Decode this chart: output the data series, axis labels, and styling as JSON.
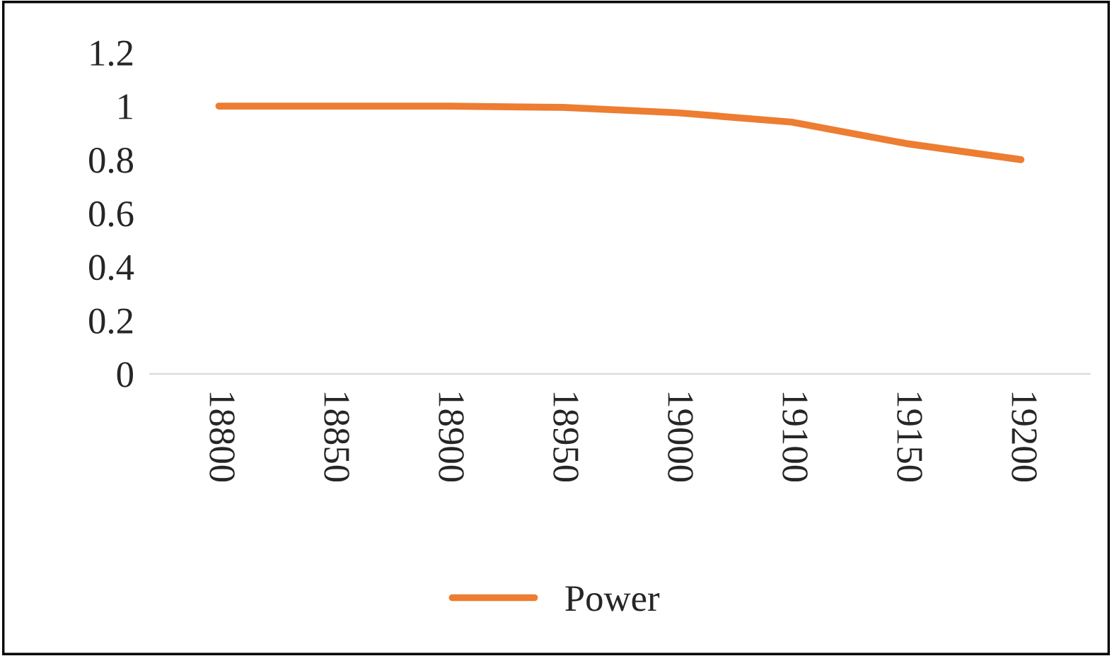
{
  "chart_data": {
    "type": "line",
    "categories": [
      "18800",
      "18850",
      "18900",
      "18950",
      "19000",
      "19100",
      "19150",
      "19200"
    ],
    "series": [
      {
        "name": "Power",
        "color": "#ed7d31",
        "values": [
          1,
          1,
          1,
          0.995,
          0.975,
          0.94,
          0.86,
          0.8
        ]
      }
    ],
    "ylim": [
      0,
      1.2
    ],
    "yticks": [
      0,
      0.2,
      0.4,
      0.6,
      0.8,
      1,
      1.2
    ],
    "grid": false,
    "legend": "bottom",
    "marker": "none",
    "line_style": "solid"
  }
}
